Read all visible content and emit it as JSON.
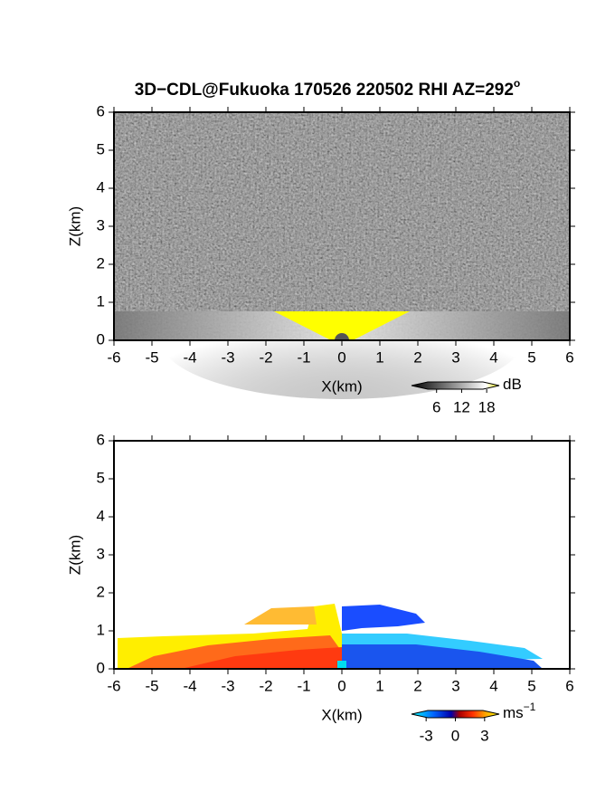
{
  "chart_data": [
    {
      "type": "heatmap",
      "title": "3D−CDL@Fukuoka 170526 220502 RHI AZ=292",
      "title_sup": "o",
      "x_label": "X(km)",
      "y_label": "Z(km)",
      "xlim": [
        -6,
        6
      ],
      "xticks": [
        -6,
        -5,
        -4,
        -3,
        -2,
        -1,
        0,
        1,
        2,
        3,
        4,
        5,
        6
      ],
      "ylim": [
        0,
        6
      ],
      "yticks": [
        0,
        1,
        2,
        3,
        4,
        5,
        6
      ],
      "colorbar": {
        "label": "dB",
        "lim": [
          0,
          21
        ],
        "ticks": [
          6,
          12,
          18
        ]
      }
    },
    {
      "type": "heatmap",
      "x_label": "X(km)",
      "y_label": "Z(km)",
      "xlim": [
        -6,
        6
      ],
      "xticks": [
        -6,
        -5,
        -4,
        -3,
        -2,
        -1,
        0,
        1,
        2,
        3,
        4,
        5,
        6
      ],
      "ylim": [
        0,
        6
      ],
      "yticks": [
        0,
        1,
        2,
        3,
        4,
        5,
        6
      ],
      "colorbar": {
        "label": "ms",
        "label_sup": "−1",
        "lim": [
          -4.5,
          4.5
        ],
        "ticks": [
          -3,
          0,
          3
        ]
      }
    }
  ]
}
